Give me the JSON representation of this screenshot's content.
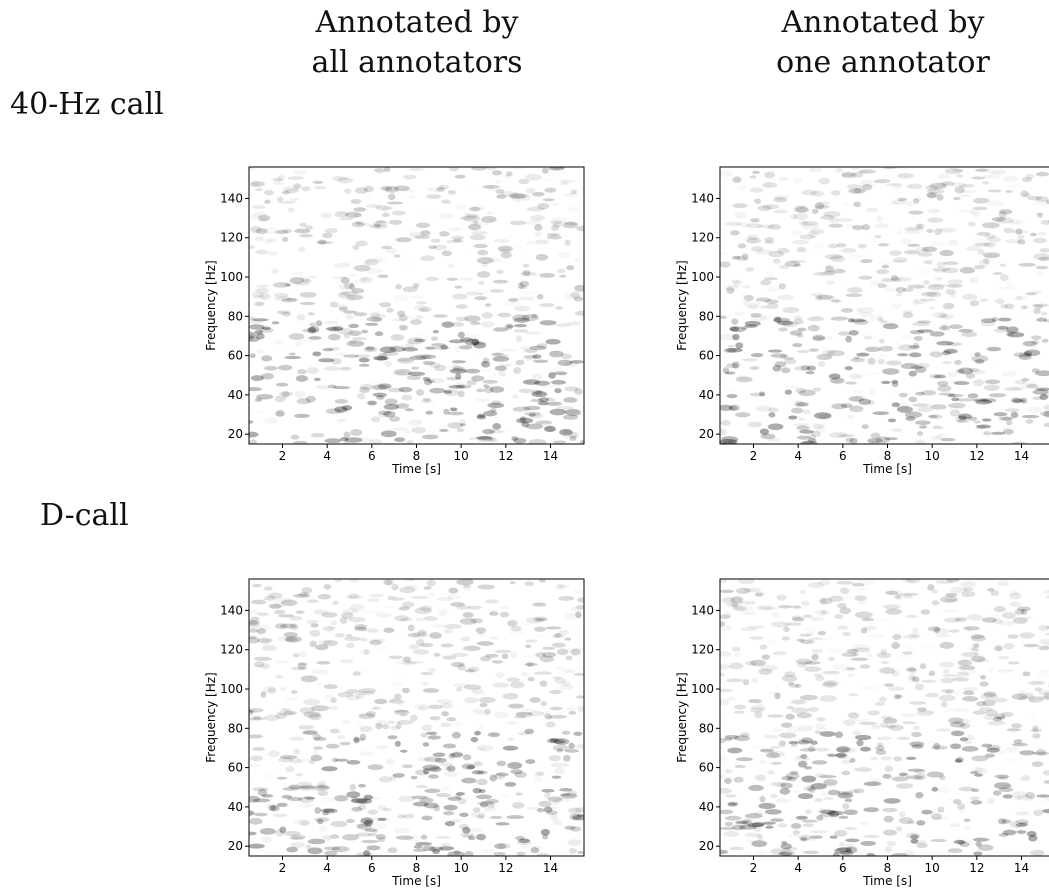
{
  "column_headers": [
    [
      "Annotated by",
      "all annotators"
    ],
    [
      "Annotated by",
      "one annotator"
    ]
  ],
  "row_labels": [
    "40-Hz call",
    "D-call"
  ],
  "chart_data": [
    {
      "type": "spectrogram",
      "xlabel": "Time [s]",
      "ylabel": "Frequency [Hz]",
      "xlim": [
        0.5,
        15.5
      ],
      "ylim": [
        15,
        156
      ],
      "xticks": [
        2,
        4,
        6,
        8,
        10,
        12,
        14
      ],
      "yticks": [
        20,
        40,
        60,
        80,
        100,
        120,
        140
      ]
    },
    {
      "type": "spectrogram",
      "xlabel": "Time [s]",
      "ylabel": "Frequency [Hz]",
      "xlim": [
        0.5,
        15.5
      ],
      "ylim": [
        15,
        156
      ],
      "xticks": [
        2,
        4,
        6,
        8,
        10,
        12,
        14
      ],
      "yticks": [
        20,
        40,
        60,
        80,
        100,
        120,
        140
      ]
    },
    {
      "type": "spectrogram",
      "xlabel": "Time [s]",
      "ylabel": "Frequency [Hz]",
      "xlim": [
        0.5,
        15.5
      ],
      "ylim": [
        15,
        156
      ],
      "xticks": [
        2,
        4,
        6,
        8,
        10,
        12,
        14
      ],
      "yticks": [
        20,
        40,
        60,
        80,
        100,
        120,
        140
      ]
    },
    {
      "type": "spectrogram",
      "xlabel": "Time [s]",
      "ylabel": "Frequency [Hz]",
      "xlim": [
        0.5,
        15.5
      ],
      "ylim": [
        15,
        156
      ],
      "xticks": [
        2,
        4,
        6,
        8,
        10,
        12,
        14
      ],
      "yticks": [
        20,
        40,
        60,
        80,
        100,
        120,
        140
      ]
    }
  ]
}
